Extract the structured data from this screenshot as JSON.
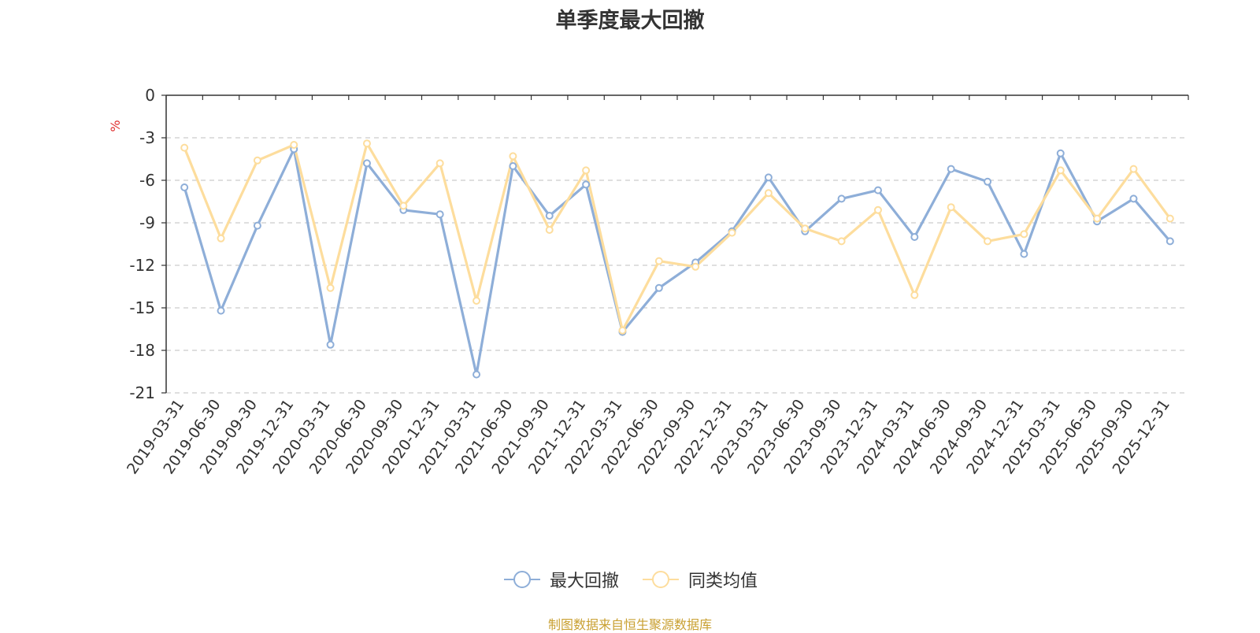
{
  "chart_data": {
    "type": "line",
    "title": "单季度最大回撤",
    "ylabel": "%",
    "ylim": [
      -21,
      0
    ],
    "yticks": [
      0,
      -3,
      -6,
      -9,
      -12,
      -15,
      -18,
      -21
    ],
    "grid": true,
    "legend_position": "bottom-center",
    "categories": [
      "2019-03-31",
      "2019-06-30",
      "2019-09-30",
      "2019-12-31",
      "2020-03-31",
      "2020-06-30",
      "2020-09-30",
      "2020-12-31",
      "2021-03-31",
      "2021-06-30",
      "2021-09-30",
      "2021-12-31",
      "2022-03-31",
      "2022-06-30",
      "2022-09-30",
      "2022-12-31",
      "2023-03-31",
      "2023-06-30",
      "2023-09-30",
      "2023-12-31",
      "2024-03-31",
      "2024-06-30",
      "2024-09-30",
      "2024-12-31",
      "2025-03-31",
      "2025-06-30",
      "2025-09-30",
      "2025-12-31"
    ],
    "series": [
      {
        "name": "最大回撤",
        "color": "#8eaed8",
        "values": [
          -6.5,
          -15.2,
          -9.2,
          -3.8,
          -17.6,
          -4.8,
          -8.1,
          -8.4,
          -19.7,
          -5.0,
          -8.5,
          -6.3,
          -16.7,
          -13.6,
          -11.8,
          -9.6,
          -5.8,
          -9.6,
          -7.3,
          -6.7,
          -10.0,
          -5.2,
          -6.1,
          -11.2,
          -4.1,
          -8.9,
          -7.3,
          -10.3
        ]
      },
      {
        "name": "同类均值",
        "color": "#fddd9d",
        "values": [
          -3.7,
          -10.1,
          -4.6,
          -3.5,
          -13.6,
          -3.4,
          -7.8,
          -4.8,
          -14.5,
          -4.3,
          -9.5,
          -5.3,
          -16.6,
          -11.7,
          -12.1,
          -9.7,
          -6.9,
          -9.4,
          -10.3,
          -8.1,
          -14.1,
          -7.9,
          -10.3,
          -9.8,
          -5.3,
          -8.7,
          -5.2,
          -8.7
        ]
      }
    ]
  },
  "source_note": "制图数据来自恒生聚源数据库"
}
